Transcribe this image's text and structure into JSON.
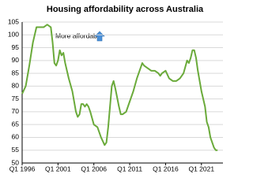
{
  "chart_data": {
    "type": "line",
    "title": "Housing affordability across Australia",
    "annotation": "More affordable",
    "x": [
      1996,
      1996.5,
      1997,
      1997.5,
      1998,
      1998.5,
      1999,
      1999.5,
      2000,
      2000.25,
      2000.5,
      2000.75,
      2001,
      2001.25,
      2001.5,
      2001.75,
      2002,
      2002.5,
      2003,
      2003.5,
      2003.75,
      2004,
      2004.25,
      2004.5,
      2004.75,
      2005,
      2005.25,
      2005.5,
      2006,
      2006.5,
      2007,
      2007.5,
      2007.75,
      2008,
      2008.5,
      2008.75,
      2009,
      2009.5,
      2009.75,
      2010,
      2010.5,
      2011,
      2011.5,
      2012,
      2012.5,
      2012.75,
      2013,
      2013.5,
      2014,
      2014.5,
      2015,
      2015.25,
      2015.5,
      2016,
      2016.5,
      2017,
      2017.5,
      2018,
      2018.5,
      2019,
      2019.25,
      2019.5,
      2019.75,
      2020,
      2020.25,
      2020.5,
      2020.75,
      2021,
      2021.5,
      2021.75,
      2022,
      2022.25,
      2022.5,
      2022.75,
      2023,
      2023.25
    ],
    "series": [
      {
        "color": "#6aaa3a",
        "values": [
          77,
          80,
          88,
          97,
          103,
          103,
          103,
          104,
          103,
          97,
          89,
          88,
          90,
          94,
          92,
          93,
          89,
          83,
          78,
          70,
          68,
          69,
          73,
          73,
          72,
          73,
          72,
          70,
          65,
          64,
          60,
          57,
          58,
          64,
          80,
          82,
          79,
          72,
          69,
          69,
          70,
          74,
          78,
          83,
          87,
          89,
          88,
          87,
          86,
          86,
          85,
          84,
          85,
          86,
          83,
          82,
          82,
          83,
          85,
          90,
          89,
          91,
          94,
          94,
          91,
          86,
          82,
          78,
          72,
          66,
          64,
          60,
          58,
          56,
          55,
          55
        ]
      }
    ],
    "xlim": [
      1996,
      2024
    ],
    "xticks": [
      {
        "value": 1996,
        "label": "Q1 1996"
      },
      {
        "value": 2001,
        "label": "Q1 2001"
      },
      {
        "value": 2006,
        "label": "Q1 2006"
      },
      {
        "value": 2011,
        "label": "Q1 2011"
      },
      {
        "value": 2016,
        "label": "Q1 2016"
      },
      {
        "value": 2021,
        "label": "Q1 2021"
      }
    ],
    "ylim": [
      50,
      105
    ],
    "yticks": [
      50,
      55,
      60,
      65,
      70,
      75,
      80,
      85,
      90,
      95,
      100,
      105
    ],
    "grid": true
  }
}
